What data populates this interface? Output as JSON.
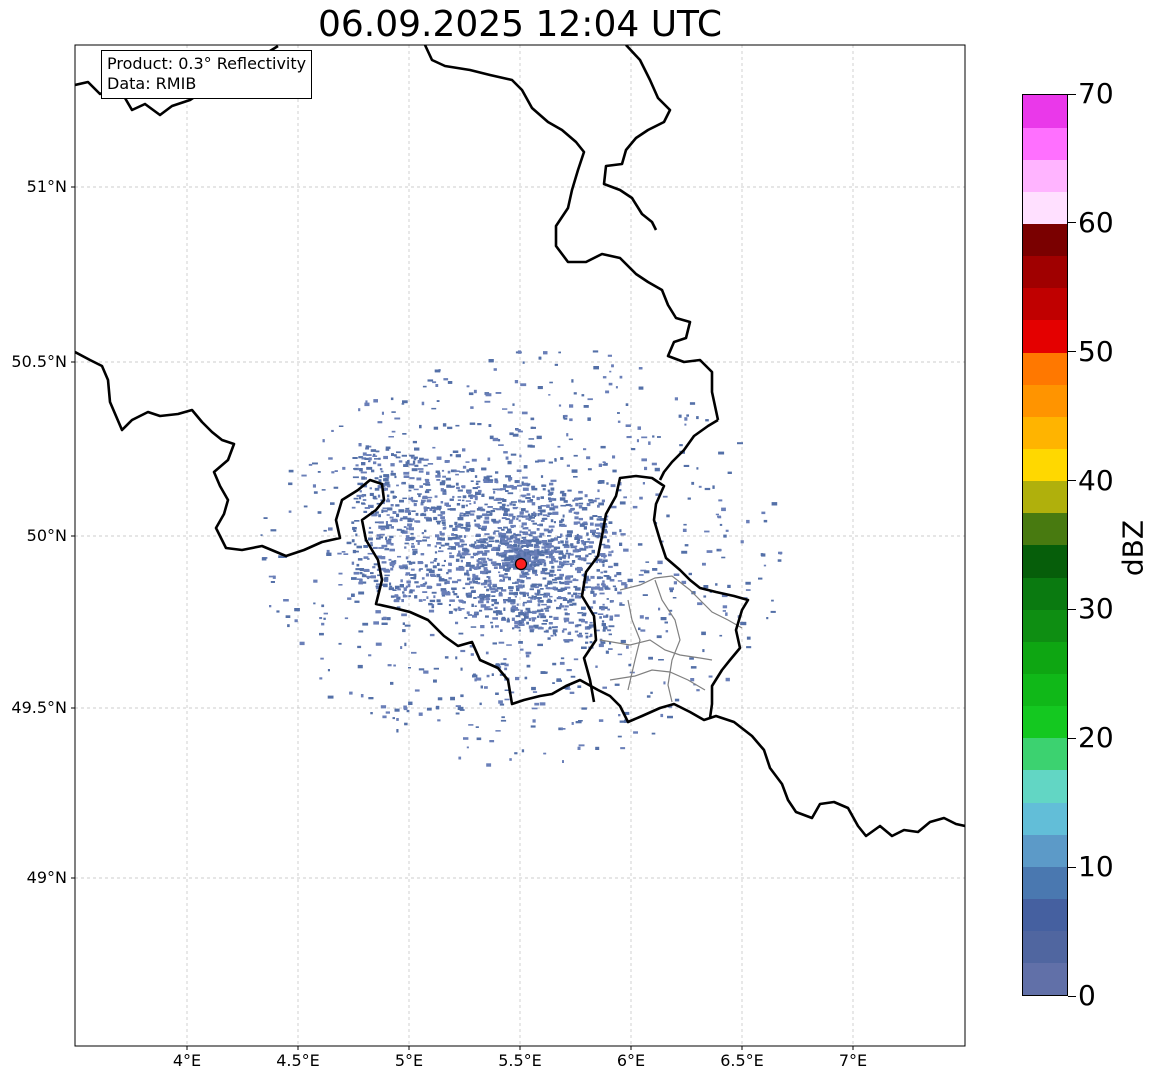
{
  "title": "06.09.2025 12:04 UTC",
  "info_box": {
    "product": "Product: 0.3° Reflectivity",
    "source": "Data: RMIB"
  },
  "map": {
    "lon_ticks": [
      "4°E",
      "4.5°E",
      "5°E",
      "5.5°E",
      "6°E",
      "6.5°E",
      "7°E"
    ],
    "lat_ticks": [
      "51°N",
      "50.5°N",
      "50°N",
      "49.5°N",
      "49°N"
    ],
    "radar_site_color": "#ff2020",
    "echo_color": "#5470a8",
    "border_color": "#000000",
    "admin_border_color": "#808080"
  },
  "colorbar": {
    "unit": "dBZ",
    "min": 0,
    "max": 70,
    "tick_labels": [
      "0",
      "10",
      "20",
      "30",
      "40",
      "50",
      "60",
      "70"
    ],
    "colors": [
      "#6170a8",
      "#5066a0",
      "#4560a0",
      "#4a78b0",
      "#5c9ac8",
      "#62bed8",
      "#62d6c4",
      "#3cd270",
      "#14c820",
      "#10b818",
      "#0ea612",
      "#0e8e12",
      "#0a7a10",
      "#065e0a",
      "#487a10",
      "#b0b00c",
      "#ffd800",
      "#ffb400",
      "#ff9400",
      "#ff7800",
      "#e40000",
      "#c00000",
      "#a00000",
      "#7a0000",
      "#ffe0ff",
      "#ffb4ff",
      "#ff70ff",
      "#ea38ea"
    ]
  }
}
